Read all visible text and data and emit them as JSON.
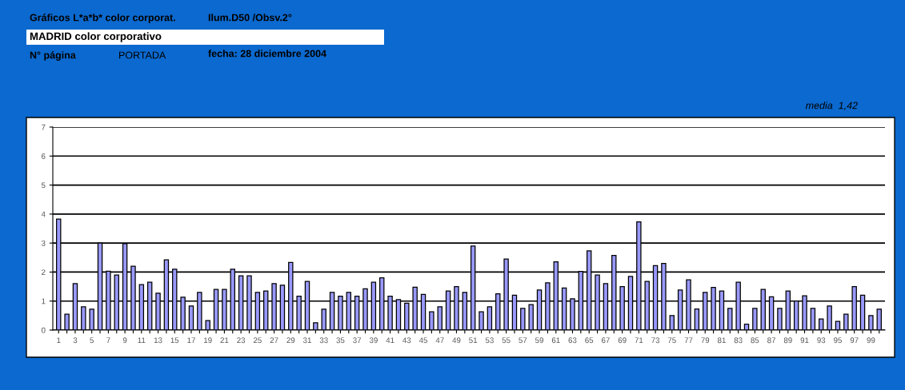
{
  "chart_data": {
    "type": "bar",
    "title": "MADRID color corporativo",
    "annotations": [
      "Gráficos L*a*b* color corporat.",
      "Ilum.D50 /Obsv.2°",
      "N° página",
      "PORTADA",
      "fecha: 28 diciembre 2004",
      "media  1,42"
    ],
    "categories": [
      "1",
      null,
      "3",
      null,
      "5",
      null,
      "7",
      null,
      "9",
      null,
      "11",
      null,
      "13",
      null,
      "15",
      null,
      "17",
      null,
      "19",
      null,
      "21",
      null,
      "23",
      null,
      "25",
      null,
      "27",
      null,
      "29",
      null,
      "31",
      null,
      "33",
      null,
      "35",
      null,
      "37",
      null,
      "39",
      null,
      "41",
      null,
      "43",
      null,
      "45",
      null,
      "47",
      null,
      "49",
      null,
      "51",
      null,
      "53",
      null,
      "55",
      null,
      "57",
      null,
      "59",
      null,
      "61",
      null,
      "63",
      null,
      "65",
      null,
      "67",
      null,
      "69",
      null,
      "71",
      null,
      "73",
      null,
      "75",
      null,
      "77",
      null,
      "79",
      null,
      "81",
      null,
      "83",
      null,
      "85",
      null,
      "87",
      null,
      "89",
      null,
      "91",
      null,
      "93",
      null,
      "95",
      null,
      "97",
      null,
      "99",
      null
    ],
    "values": [
      3.83,
      0.55,
      1.6,
      0.8,
      0.72,
      3.0,
      2.03,
      1.9,
      2.98,
      2.2,
      1.57,
      1.65,
      1.27,
      2.42,
      2.1,
      1.13,
      0.83,
      1.3,
      0.33,
      1.4,
      1.4,
      2.1,
      1.87,
      1.87,
      1.3,
      1.35,
      1.6,
      1.55,
      2.33,
      1.17,
      1.68,
      0.25,
      0.72,
      1.3,
      1.17,
      1.3,
      1.17,
      1.42,
      1.65,
      1.8,
      1.17,
      1.05,
      0.93,
      1.48,
      1.23,
      0.63,
      0.8,
      1.35,
      1.5,
      1.3,
      2.9,
      0.63,
      0.8,
      1.25,
      2.45,
      1.2,
      0.75,
      0.88,
      1.38,
      1.63,
      2.35,
      1.45,
      1.08,
      2.02,
      2.73,
      1.9,
      1.6,
      2.57,
      1.5,
      1.85,
      3.73,
      1.68,
      2.22,
      2.3,
      0.5,
      1.38,
      1.73,
      0.73,
      1.3,
      1.47,
      1.35,
      0.75,
      1.65,
      0.2,
      0.75,
      1.4,
      1.15,
      0.75,
      1.35,
      1.0,
      1.18,
      0.75,
      0.38,
      0.83,
      0.3,
      0.55,
      1.5,
      1.2,
      0.5,
      0.72
    ],
    "color": "#9999ff",
    "ylim": [
      0,
      7
    ],
    "yticks": [
      0,
      1,
      2,
      3,
      4,
      5,
      6,
      7
    ],
    "grid": "y",
    "legend": false
  }
}
